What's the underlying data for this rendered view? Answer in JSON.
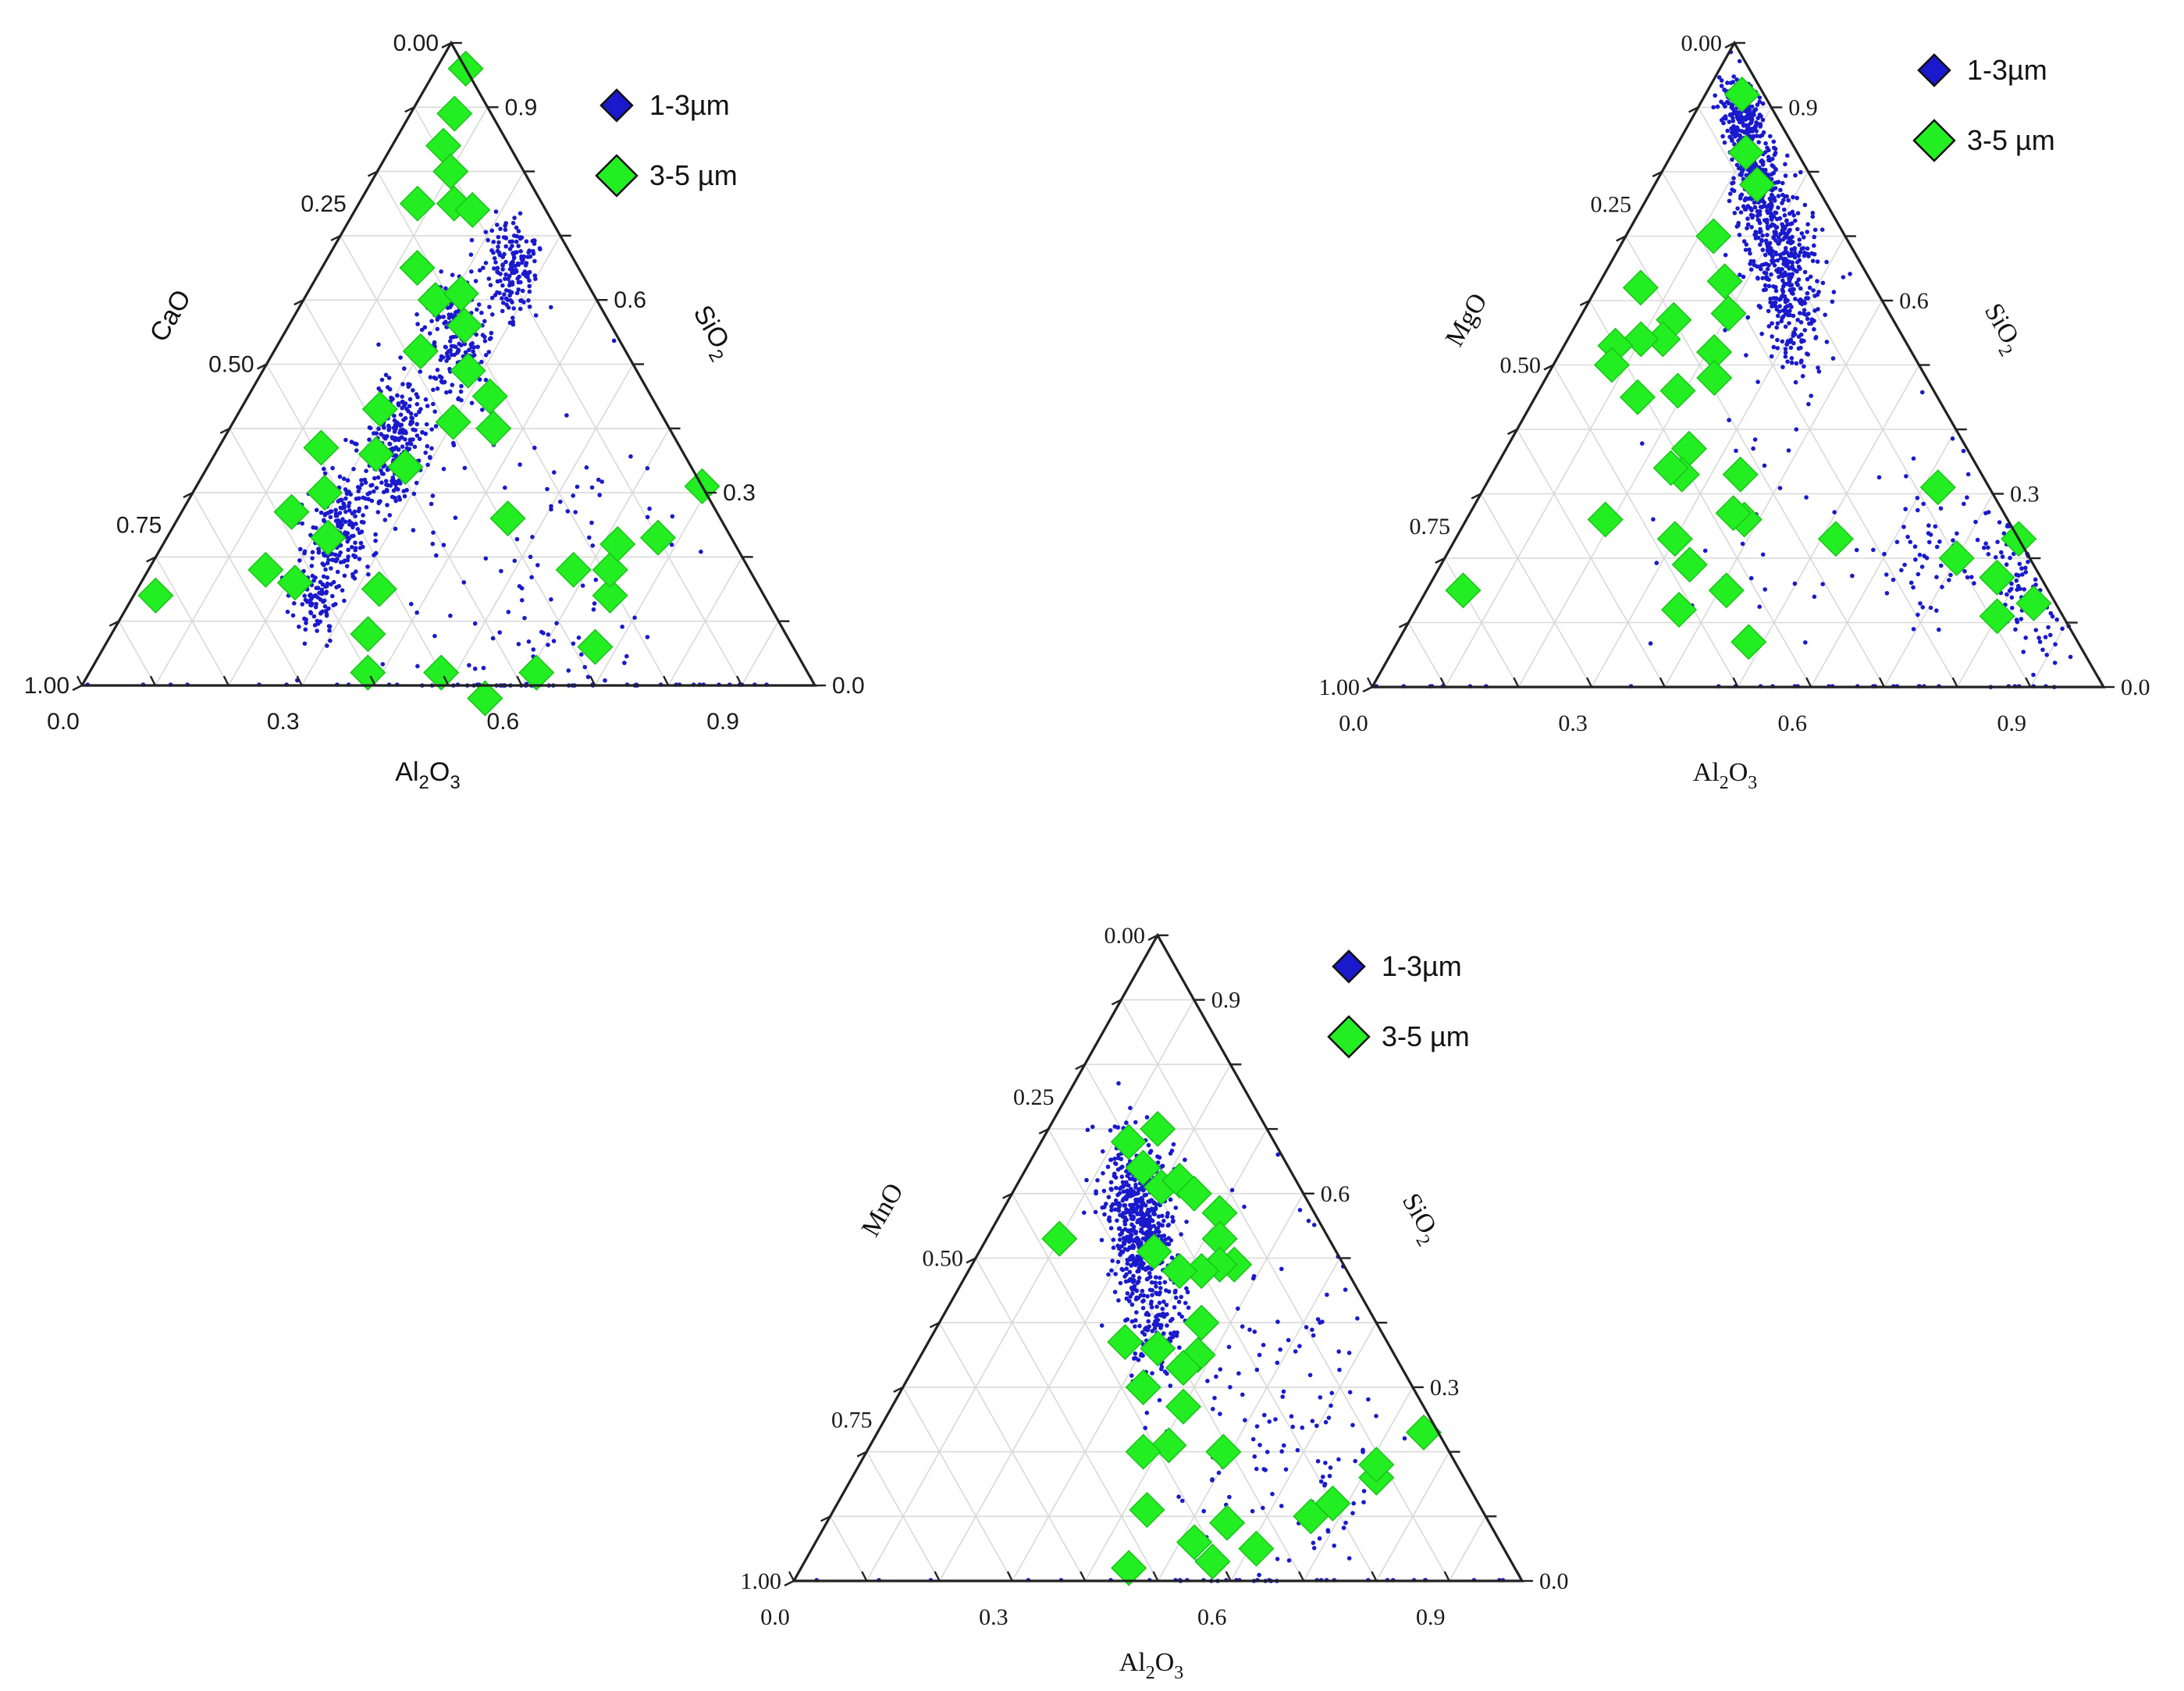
{
  "legend": [
    {
      "label": "1-3µm",
      "color": "#1a1acc",
      "shape": "diamond-small"
    },
    {
      "label": "3-5 µm",
      "color": "#22ee22",
      "shape": "diamond-large"
    }
  ],
  "chart_data": [
    {
      "type": "scatter",
      "subtype": "ternary",
      "axes": {
        "top": "SiO2",
        "left": "CaO",
        "right": "Al2O3"
      },
      "axis_labels": {
        "left": "CaO",
        "right_main": "SiO",
        "right_sub": "2",
        "bottom_main": "Al",
        "bottom_sub1": "2",
        "bottom_mid": "O",
        "bottom_sub2": "3"
      },
      "left_ticks": [
        {
          "value": 0.0,
          "label": "0.00"
        },
        {
          "value": 0.25,
          "label": "0.25"
        },
        {
          "value": 0.5,
          "label": "0.50"
        },
        {
          "value": 0.75,
          "label": "0.75"
        },
        {
          "value": 1.0,
          "label": "1.00"
        }
      ],
      "right_ticks": [
        {
          "value": 0.9,
          "label": "0.9"
        },
        {
          "value": 0.6,
          "label": "0.6"
        },
        {
          "value": 0.3,
          "label": "0.3"
        },
        {
          "value": 0.0,
          "label": "0.0"
        }
      ],
      "bottom_ticks": [
        {
          "value": 0.0,
          "label": "0.0"
        },
        {
          "value": 0.3,
          "label": "0.3"
        },
        {
          "value": 0.6,
          "label": "0.6"
        },
        {
          "value": 0.9,
          "label": "0.9"
        }
      ],
      "series": [
        {
          "name": "1-3µm",
          "note": "dense cloud of small points; clusters given in ternary fractions (Al2O3, other oxide)",
          "clusters": [
            {
              "c": [
                0.26,
                0.09
              ],
              "spread": [
                0.05,
                0.05
              ],
              "n": 160
            },
            {
              "c": [
                0.24,
                0.22
              ],
              "spread": [
                0.05,
                0.06
              ],
              "n": 200
            },
            {
              "c": [
                0.24,
                0.38
              ],
              "spread": [
                0.05,
                0.06
              ],
              "n": 260
            },
            {
              "c": [
                0.23,
                0.52
              ],
              "spread": [
                0.05,
                0.06
              ],
              "n": 200
            },
            {
              "c": [
                0.25,
                0.62
              ],
              "spread": [
                0.04,
                0.04
              ],
              "n": 90
            },
            {
              "c": [
                0.55,
                0.3
              ],
              "spread": [
                0.22,
                0.22
              ],
              "n": 140
            }
          ],
          "edge_points": {
            "n": 34
          }
        },
        {
          "name": "3-5 µm",
          "points": [
            [
              0.04,
              0.0
            ],
            [
              0.06,
              0.05
            ],
            [
              0.07,
              0.09
            ],
            [
              0.1,
              0.1
            ],
            [
              0.13,
              0.12
            ],
            [
              0.16,
              0.1
            ],
            [
              0.08,
              0.17
            ],
            [
              0.13,
              0.22
            ],
            [
              0.18,
              0.22
            ],
            [
              0.21,
              0.18
            ],
            [
              0.24,
              0.2
            ],
            [
              0.28,
              0.23
            ],
            [
              0.2,
              0.28
            ],
            [
              0.3,
              0.29
            ],
            [
              0.36,
              0.24
            ],
            [
              0.19,
              0.38
            ],
            [
              0.22,
              0.42
            ],
            [
              0.27,
              0.39
            ],
            [
              0.14,
              0.49
            ],
            [
              0.18,
              0.52
            ],
            [
              0.22,
              0.55
            ],
            [
              0.15,
              0.58
            ],
            [
              0.21,
              0.63
            ],
            [
              0.16,
              0.66
            ],
            [
              0.33,
              0.52
            ],
            [
              0.35,
              0.57
            ],
            [
              0.38,
              0.6
            ],
            [
              0.33,
              0.22
            ],
            [
              0.45,
              0.29
            ],
            [
              0.58,
              0.24
            ],
            [
              0.67,
              0.1
            ],
            [
              0.48,
              0.5
            ],
            [
              0.56,
              0.46
            ],
            [
              0.61,
              0.37
            ],
            [
              0.67,
              0.27
            ],
            [
              0.65,
              0.21
            ],
            [
              0.63,
              0.19
            ],
            [
              0.62,
              0.16
            ],
            [
              0.69,
              0.0
            ],
            [
              0.03,
              0.83
            ]
          ]
        }
      ]
    },
    {
      "type": "scatter",
      "subtype": "ternary",
      "axes": {
        "top": "SiO2",
        "left": "MgO",
        "right": "Al2O3"
      },
      "axis_labels": {
        "left": "MgO",
        "right_main": "SiO",
        "right_sub": "2",
        "bottom_main": "Al",
        "bottom_sub1": "2",
        "bottom_mid": "O",
        "bottom_sub2": "3"
      },
      "left_ticks": [
        {
          "value": 0.0,
          "label": "0.00"
        },
        {
          "value": 0.25,
          "label": "0.25"
        },
        {
          "value": 0.5,
          "label": "0.50"
        },
        {
          "value": 0.75,
          "label": "0.75"
        },
        {
          "value": 1.0,
          "label": "1.00"
        }
      ],
      "right_ticks": [
        {
          "value": 0.9,
          "label": "0.9"
        },
        {
          "value": 0.6,
          "label": "0.6"
        },
        {
          "value": 0.3,
          "label": "0.3"
        },
        {
          "value": 0.0,
          "label": "0.0"
        }
      ],
      "bottom_ticks": [
        {
          "value": 0.0,
          "label": "0.0"
        },
        {
          "value": 0.3,
          "label": "0.3"
        },
        {
          "value": 0.6,
          "label": "0.6"
        },
        {
          "value": 0.9,
          "label": "0.9"
        }
      ],
      "series": [
        {
          "name": "1-3µm",
          "note": "dense cloud of small points along the SiO2-Al2O3 edge",
          "clusters": [
            {
              "c": [
                0.07,
                0.05
              ],
              "spread": [
                0.04,
                0.03
              ],
              "n": 220
            },
            {
              "c": [
                0.14,
                0.08
              ],
              "spread": [
                0.04,
                0.04
              ],
              "n": 260
            },
            {
              "c": [
                0.22,
                0.1
              ],
              "spread": [
                0.05,
                0.05
              ],
              "n": 240
            },
            {
              "c": [
                0.29,
                0.13
              ],
              "spread": [
                0.05,
                0.06
              ],
              "n": 160
            },
            {
              "c": [
                0.82,
                0.04
              ],
              "spread": [
                0.08,
                0.04
              ],
              "n": 90
            },
            {
              "c": [
                0.65,
                0.12
              ],
              "spread": [
                0.12,
                0.1
              ],
              "n": 70
            },
            {
              "c": [
                0.4,
                0.3
              ],
              "spread": [
                0.2,
                0.2
              ],
              "n": 40
            }
          ],
          "edge_points": {
            "n": 30
          }
        },
        {
          "name": "3-5 µm",
          "points": [
            [
              0.05,
              0.03
            ],
            [
              0.1,
              0.07
            ],
            [
              0.14,
              0.08
            ],
            [
              0.12,
              0.18
            ],
            [
              0.17,
              0.2
            ],
            [
              0.2,
              0.22
            ],
            [
              0.21,
              0.27
            ],
            [
              0.23,
              0.29
            ],
            [
              0.13,
              0.3
            ],
            [
              0.13,
              0.33
            ],
            [
              0.1,
              0.36
            ],
            [
              0.07,
              0.4
            ],
            [
              0.08,
              0.42
            ],
            [
              0.06,
              0.32
            ],
            [
              0.19,
              0.35
            ],
            [
              0.25,
              0.38
            ],
            [
              0.26,
              0.41
            ],
            [
              0.34,
              0.33
            ],
            [
              0.38,
              0.36
            ],
            [
              0.36,
              0.37
            ],
            [
              0.14,
              0.41
            ],
            [
              0.24,
              0.42
            ],
            [
              0.19,
              0.55
            ],
            [
              0.3,
              0.47
            ],
            [
              0.36,
              0.52
            ],
            [
              0.34,
              0.47
            ],
            [
              0.41,
              0.44
            ],
            [
              0.48,
              0.45
            ],
            [
              0.62,
              0.07
            ],
            [
              0.7,
              0.1
            ],
            [
              0.8,
              0.09
            ],
            [
              0.77,
              0.06
            ],
            [
              0.84,
              0.03
            ],
            [
              0.77,
              0.0
            ],
            [
              0.52,
              0.25
            ],
            [
              0.05,
              0.8
            ]
          ]
        }
      ]
    },
    {
      "type": "scatter",
      "subtype": "ternary",
      "axes": {
        "top": "SiO2",
        "left": "MnO",
        "right": "Al2O3"
      },
      "axis_labels": {
        "left": "MnO",
        "right_main": "SiO",
        "right_sub": "2",
        "bottom_main": "Al",
        "bottom_sub1": "2",
        "bottom_mid": "O",
        "bottom_sub2": "3"
      },
      "left_ticks": [
        {
          "value": 0.0,
          "label": "0.00"
        },
        {
          "value": 0.25,
          "label": "0.25"
        },
        {
          "value": 0.5,
          "label": "0.50"
        },
        {
          "value": 0.75,
          "label": "0.75"
        },
        {
          "value": 1.0,
          "label": "1.00"
        }
      ],
      "right_ticks": [
        {
          "value": 0.9,
          "label": "0.9"
        },
        {
          "value": 0.6,
          "label": "0.6"
        },
        {
          "value": 0.3,
          "label": "0.3"
        },
        {
          "value": 0.0,
          "label": "0.0"
        }
      ],
      "bottom_ticks": [
        {
          "value": 0.0,
          "label": "0.0"
        },
        {
          "value": 0.3,
          "label": "0.3"
        },
        {
          "value": 0.6,
          "label": "0.6"
        },
        {
          "value": 0.9,
          "label": "0.9"
        }
      ],
      "series": [
        {
          "name": "1-3µm",
          "note": "dense cloud of small points near the centre-top",
          "clusters": [
            {
              "c": [
                0.17,
                0.23
              ],
              "spread": [
                0.06,
                0.06
              ],
              "n": 320
            },
            {
              "c": [
                0.22,
                0.26
              ],
              "spread": [
                0.05,
                0.05
              ],
              "n": 260
            },
            {
              "c": [
                0.3,
                0.3
              ],
              "spread": [
                0.05,
                0.05
              ],
              "n": 140
            },
            {
              "c": [
                0.55,
                0.2
              ],
              "spread": [
                0.18,
                0.18
              ],
              "n": 150
            }
          ],
          "edge_points": {
            "n": 30
          }
        },
        {
          "name": "3-5 µm",
          "points": [
            [
              0.15,
              0.15
            ],
            [
              0.12,
              0.2
            ],
            [
              0.16,
              0.2
            ],
            [
              0.2,
              0.19
            ],
            [
              0.22,
              0.16
            ],
            [
              0.25,
              0.15
            ],
            [
              0.3,
              0.13
            ],
            [
              0.32,
              0.15
            ],
            [
              0.36,
              0.15
            ],
            [
              0.34,
              0.17
            ],
            [
              0.32,
              0.2
            ],
            [
              0.29,
              0.23
            ],
            [
              0.24,
              0.25
            ],
            [
              0.36,
              0.24
            ],
            [
              0.38,
              0.27
            ],
            [
              0.37,
              0.3
            ],
            [
              0.32,
              0.32
            ],
            [
              0.33,
              0.37
            ],
            [
              0.4,
              0.33
            ],
            [
              0.41,
              0.38
            ],
            [
              0.38,
              0.42
            ],
            [
              0.1,
              0.37
            ],
            [
              0.27,
              0.36
            ],
            [
              0.49,
              0.31
            ],
            [
              0.43,
              0.46
            ],
            [
              0.45,
              0.53
            ],
            [
              0.52,
              0.42
            ],
            [
              0.56,
              0.41
            ],
            [
              0.55,
              0.36
            ],
            [
              0.66,
              0.24
            ],
            [
              0.68,
              0.2
            ],
            [
              0.72,
              0.12
            ],
            [
              0.71,
              0.11
            ],
            [
              0.75,
              0.02
            ],
            [
              0.61,
              0.34
            ]
          ]
        }
      ]
    }
  ]
}
